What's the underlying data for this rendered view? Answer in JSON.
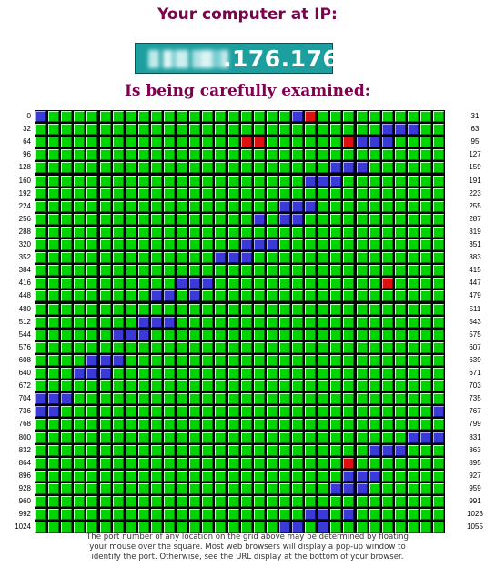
{
  "header": {
    "title": "Your computer at IP:",
    "ip_visible_suffix": ".176.176",
    "subtitle": "Is being carefully examined:"
  },
  "grid": {
    "columns": 32,
    "rows": 33,
    "colors": {
      "open": "#00d400",
      "stealth_blue": "#3a3ad6",
      "closed_red": "#e01010"
    },
    "left_labels": [
      "0",
      "32",
      "64",
      "96",
      "128",
      "160",
      "192",
      "224",
      "256",
      "288",
      "320",
      "352",
      "384",
      "416",
      "448",
      "480",
      "512",
      "544",
      "576",
      "608",
      "640",
      "672",
      "704",
      "736",
      "768",
      "800",
      "832",
      "864",
      "896",
      "928",
      "960",
      "992",
      "1024"
    ],
    "right_labels": [
      "31",
      "63",
      "95",
      "127",
      "159",
      "191",
      "223",
      "255",
      "287",
      "319",
      "351",
      "383",
      "415",
      "447",
      "479",
      "511",
      "543",
      "575",
      "607",
      "639",
      "671",
      "703",
      "735",
      "767",
      "799",
      "831",
      "863",
      "895",
      "927",
      "959",
      "991",
      "1023",
      "1055"
    ],
    "blue_cells": [
      [
        0,
        0
      ],
      [
        0,
        20
      ],
      [
        1,
        27
      ],
      [
        1,
        28
      ],
      [
        1,
        29
      ],
      [
        2,
        25
      ],
      [
        2,
        26
      ],
      [
        2,
        27
      ],
      [
        4,
        23
      ],
      [
        4,
        24
      ],
      [
        4,
        25
      ],
      [
        5,
        21
      ],
      [
        5,
        22
      ],
      [
        5,
        23
      ],
      [
        7,
        19
      ],
      [
        7,
        20
      ],
      [
        7,
        21
      ],
      [
        8,
        17
      ],
      [
        8,
        19
      ],
      [
        8,
        20
      ],
      [
        10,
        16
      ],
      [
        10,
        17
      ],
      [
        10,
        18
      ],
      [
        11,
        14
      ],
      [
        11,
        15
      ],
      [
        11,
        16
      ],
      [
        13,
        11
      ],
      [
        13,
        12
      ],
      [
        13,
        13
      ],
      [
        14,
        9
      ],
      [
        14,
        10
      ],
      [
        14,
        12
      ],
      [
        16,
        8
      ],
      [
        16,
        9
      ],
      [
        16,
        10
      ],
      [
        17,
        6
      ],
      [
        17,
        7
      ],
      [
        17,
        8
      ],
      [
        19,
        4
      ],
      [
        19,
        5
      ],
      [
        19,
        6
      ],
      [
        20,
        3
      ],
      [
        20,
        4
      ],
      [
        20,
        5
      ],
      [
        22,
        0
      ],
      [
        22,
        1
      ],
      [
        22,
        2
      ],
      [
        23,
        0
      ],
      [
        23,
        1
      ],
      [
        23,
        31
      ],
      [
        25,
        29
      ],
      [
        25,
        30
      ],
      [
        25,
        31
      ],
      [
        26,
        26
      ],
      [
        26,
        27
      ],
      [
        26,
        28
      ],
      [
        28,
        24
      ],
      [
        28,
        25
      ],
      [
        28,
        26
      ],
      [
        29,
        23
      ],
      [
        29,
        24
      ],
      [
        29,
        25
      ],
      [
        31,
        21
      ],
      [
        31,
        22
      ],
      [
        31,
        24
      ],
      [
        32,
        19
      ],
      [
        32,
        20
      ],
      [
        32,
        22
      ]
    ],
    "red_cells": [
      [
        0,
        21
      ],
      [
        2,
        16
      ],
      [
        2,
        17
      ],
      [
        2,
        24
      ],
      [
        13,
        27
      ],
      [
        27,
        24
      ]
    ]
  },
  "footer": {
    "line1": "The port number of any location on the grid above may be determined by floating",
    "line2": "your mouse over the square. Most web browsers will display a pop-up window to",
    "line3": "identify the port. Otherwise, see the URL display at the bottom of your browser."
  }
}
